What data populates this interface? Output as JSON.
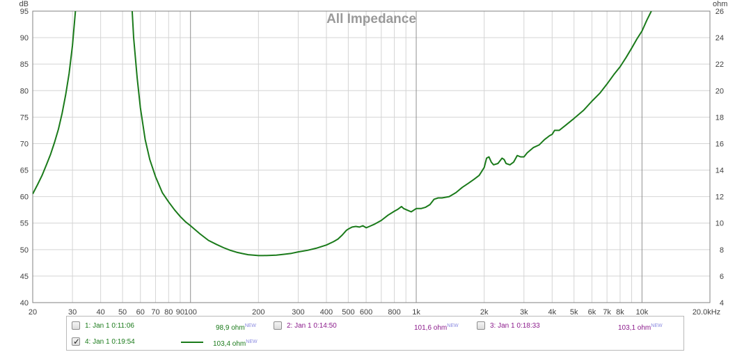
{
  "chart_data": {
    "type": "line",
    "title": "All Impedance",
    "x_scale": "log",
    "xlim": [
      20,
      20000
    ],
    "left_axis": {
      "unit": "dB",
      "ylim": [
        40,
        95
      ],
      "ticks": [
        "40",
        "45",
        "50",
        "55",
        "60",
        "65",
        "70",
        "75",
        "80",
        "85",
        "90",
        "95"
      ]
    },
    "right_axis": {
      "unit": "ohm",
      "ylim": [
        4,
        26
      ],
      "ticks": [
        "4",
        "6",
        "8",
        "10",
        "12",
        "14",
        "16",
        "18",
        "20",
        "22",
        "24",
        "26"
      ]
    },
    "x_ticks": [
      {
        "v": 20,
        "label": "20"
      },
      {
        "v": 30,
        "label": "30"
      },
      {
        "v": 40,
        "label": "40"
      },
      {
        "v": 50,
        "label": "50"
      },
      {
        "v": 60,
        "label": "60"
      },
      {
        "v": 70,
        "label": "70"
      },
      {
        "v": 80,
        "label": "80"
      },
      {
        "v": 90,
        "label": "90"
      },
      {
        "v": 100,
        "label": "100"
      },
      {
        "v": 200,
        "label": "200"
      },
      {
        "v": 300,
        "label": "300"
      },
      {
        "v": 400,
        "label": "400"
      },
      {
        "v": 500,
        "label": "500"
      },
      {
        "v": 600,
        "label": "600"
      },
      {
        "v": 800,
        "label": "800"
      },
      {
        "v": 1000,
        "label": "1k"
      },
      {
        "v": 2000,
        "label": "2k"
      },
      {
        "v": 3000,
        "label": "3k"
      },
      {
        "v": 4000,
        "label": "4k"
      },
      {
        "v": 5000,
        "label": "5k"
      },
      {
        "v": 6000,
        "label": "6k"
      },
      {
        "v": 7000,
        "label": "7k"
      },
      {
        "v": 8000,
        "label": "8k"
      },
      {
        "v": 10000,
        "label": "10k"
      },
      {
        "v": 20000,
        "label": "20,0kHz"
      }
    ],
    "grid": true,
    "series": [
      {
        "color": "#1a7a1a",
        "axis": "right",
        "unit": "ohm",
        "points": [
          [
            20,
            12.2
          ],
          [
            21,
            12.9
          ],
          [
            22,
            13.6
          ],
          [
            23,
            14.4
          ],
          [
            24,
            15.2
          ],
          [
            25,
            16.1
          ],
          [
            26,
            17.1
          ],
          [
            27,
            18.3
          ],
          [
            28,
            19.7
          ],
          [
            29,
            21.3
          ],
          [
            30,
            23.4
          ],
          [
            31,
            26.2
          ],
          [
            55,
            26.4
          ],
          [
            56,
            24.0
          ],
          [
            58,
            21.0
          ],
          [
            60,
            18.7
          ],
          [
            63,
            16.3
          ],
          [
            66,
            14.8
          ],
          [
            70,
            13.5
          ],
          [
            75,
            12.3
          ],
          [
            80,
            11.6
          ],
          [
            85,
            11.0
          ],
          [
            90,
            10.5
          ],
          [
            95,
            10.1
          ],
          [
            100,
            9.8
          ],
          [
            110,
            9.2
          ],
          [
            120,
            8.7
          ],
          [
            130,
            8.4
          ],
          [
            140,
            8.15
          ],
          [
            150,
            7.95
          ],
          [
            160,
            7.8
          ],
          [
            170,
            7.7
          ],
          [
            180,
            7.62
          ],
          [
            190,
            7.58
          ],
          [
            200,
            7.55
          ],
          [
            210,
            7.55
          ],
          [
            220,
            7.56
          ],
          [
            240,
            7.58
          ],
          [
            260,
            7.65
          ],
          [
            280,
            7.72
          ],
          [
            300,
            7.83
          ],
          [
            330,
            7.95
          ],
          [
            360,
            8.1
          ],
          [
            400,
            8.35
          ],
          [
            430,
            8.6
          ],
          [
            450,
            8.8
          ],
          [
            470,
            9.1
          ],
          [
            490,
            9.45
          ],
          [
            500,
            9.55
          ],
          [
            520,
            9.7
          ],
          [
            540,
            9.75
          ],
          [
            560,
            9.7
          ],
          [
            580,
            9.8
          ],
          [
            600,
            9.65
          ],
          [
            620,
            9.75
          ],
          [
            650,
            9.9
          ],
          [
            700,
            10.2
          ],
          [
            750,
            10.6
          ],
          [
            800,
            10.9
          ],
          [
            830,
            11.05
          ],
          [
            860,
            11.25
          ],
          [
            880,
            11.1
          ],
          [
            920,
            10.95
          ],
          [
            950,
            10.85
          ],
          [
            1000,
            11.1
          ],
          [
            1050,
            11.1
          ],
          [
            1100,
            11.2
          ],
          [
            1150,
            11.4
          ],
          [
            1200,
            11.8
          ],
          [
            1250,
            11.9
          ],
          [
            1300,
            11.9
          ],
          [
            1400,
            12.0
          ],
          [
            1500,
            12.3
          ],
          [
            1600,
            12.7
          ],
          [
            1700,
            13.0
          ],
          [
            1800,
            13.3
          ],
          [
            1900,
            13.6
          ],
          [
            1950,
            13.9
          ],
          [
            2000,
            14.2
          ],
          [
            2050,
            14.9
          ],
          [
            2100,
            15.0
          ],
          [
            2150,
            14.6
          ],
          [
            2200,
            14.4
          ],
          [
            2300,
            14.5
          ],
          [
            2400,
            14.9
          ],
          [
            2450,
            14.8
          ],
          [
            2500,
            14.5
          ],
          [
            2600,
            14.4
          ],
          [
            2700,
            14.6
          ],
          [
            2800,
            15.1
          ],
          [
            2900,
            15.0
          ],
          [
            3000,
            15.0
          ],
          [
            3100,
            15.3
          ],
          [
            3300,
            15.7
          ],
          [
            3500,
            15.9
          ],
          [
            3700,
            16.3
          ],
          [
            3900,
            16.6
          ],
          [
            4000,
            16.7
          ],
          [
            4100,
            17.0
          ],
          [
            4300,
            17.0
          ],
          [
            4600,
            17.4
          ],
          [
            5000,
            17.9
          ],
          [
            5500,
            18.5
          ],
          [
            6000,
            19.2
          ],
          [
            6500,
            19.8
          ],
          [
            7000,
            20.5
          ],
          [
            7500,
            21.2
          ],
          [
            8000,
            21.8
          ],
          [
            8500,
            22.5
          ],
          [
            9000,
            23.2
          ],
          [
            9500,
            23.9
          ],
          [
            10000,
            24.5
          ],
          [
            10500,
            25.3
          ],
          [
            11000,
            26.0
          ]
        ]
      }
    ]
  },
  "legend": [
    {
      "label": "1: Jan 1 0:11:06",
      "value": "98,9 ohm",
      "sup": "NEW",
      "checked": false,
      "color": "#1a7a1a"
    },
    {
      "label": "2: Jan 1 0:14:50",
      "value": "101,6 ohm",
      "sup": "NEW",
      "checked": false,
      "color": "#8b1a8b"
    },
    {
      "label": "3: Jan 1 0:18:33",
      "value": "103,1 ohm",
      "sup": "NEW",
      "checked": false,
      "color": "#8b1a8b"
    },
    {
      "label": "4: Jan 1 0:19:54",
      "value": "103,4 ohm",
      "sup": "NEW",
      "checked": true,
      "color": "#1a7a1a"
    }
  ],
  "check_mark": "✓"
}
